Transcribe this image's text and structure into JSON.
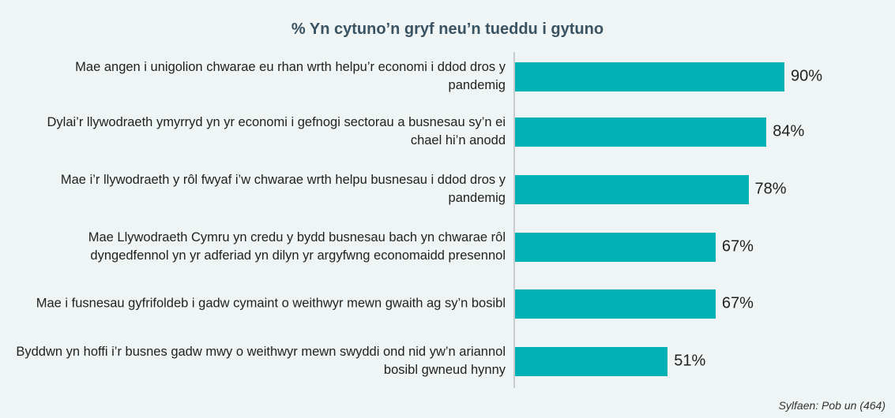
{
  "chart_data": {
    "type": "bar",
    "orientation": "horizontal",
    "title": "% Yn cytuno’n gryf neu’n tueddu i gytuno",
    "categories": [
      "Mae angen i unigolion chwarae eu rhan wrth helpu’r  economi i ddod dros y pandemig",
      "Dylai’r llywodraeth ymyrryd yn yr economi i gefnogi sectorau a busnesau sy’n ei chael hi’n anodd",
      "Mae i’r llywodraeth y rôl fwyaf i’w chwarae wrth helpu busnesau i ddod dros y pandemig",
      "Mae Llywodraeth Cymru yn credu y bydd busnesau bach yn chwarae rôl dyngedfennol yn yr adferiad yn dilyn yr argyfwng economaidd presennol",
      "Mae i fusnesau gyfrifoldeb i gadw cymaint o weithwyr mewn gwaith ag sy’n bosibl",
      "Byddwn yn hoffi i’r busnes gadw mwy o weithwyr mewn swyddi ond nid yw’n ariannol bosibl gwneud hynny"
    ],
    "values": [
      90,
      84,
      78,
      67,
      67,
      51
    ],
    "value_labels": [
      "90%",
      "84%",
      "78%",
      "67%",
      "67%",
      "51%"
    ],
    "color": "#00b2b5",
    "source": "Sylfaen: Pob un (464)"
  }
}
